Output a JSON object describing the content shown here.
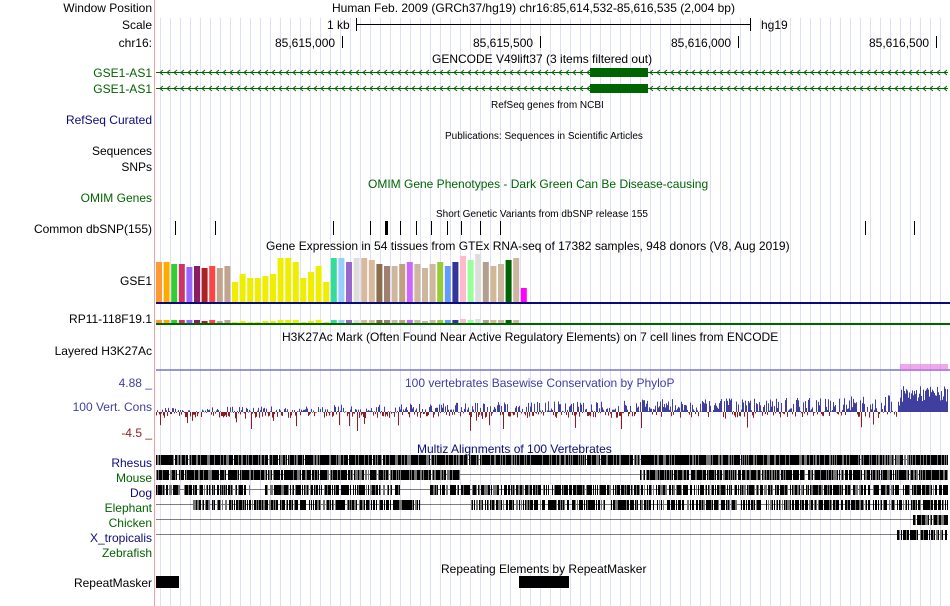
{
  "colors": {
    "gene_green": "#006400",
    "refseq_blue": "#0c0c78",
    "phylop_blue": "#3f3f9f",
    "phylop_red": "#8b1e1e",
    "grid_blue": "#dde0f8",
    "side_red": "#f0a0a0"
  },
  "header": {
    "window_position_label": "Window Position",
    "window_position_text": "Human Feb. 2009 (GRCh37/hg19)   chr16:85,614,532-85,616,535 (2,004 bp)",
    "scale_label": "Scale",
    "scale_text": "1 kb",
    "assembly": "hg19",
    "chrom_label": "chr16:",
    "ticks": [
      "85,615,000",
      "85,615,500",
      "85,616,000",
      "85,616,500"
    ]
  },
  "tracks": {
    "gencode_title": "GENCODE V49lift37 (3 items filtered out)",
    "gencode_items": [
      "GSE1-AS1",
      "GSE1-AS1"
    ],
    "refseq_title": "RefSeq genes from NCBI",
    "refseq_label": "RefSeq Curated",
    "publications_title": "Publications: Sequences in Scientific Articles",
    "sequences_label": "Sequences",
    "snps_label": "SNPs",
    "omim_title": "OMIM Gene Phenotypes - Dark Green Can Be Disease-causing",
    "omim_label": "OMIM Genes",
    "dbsnp_title": "Short Genetic Variants from dbSNP release 155",
    "dbsnp_label": "Common dbSNP(155)",
    "gtex_title": "Gene Expression in 54 tissues from GTEx RNA-seq of 17382 samples, 948 donors (V8, Aug 2019)",
    "gtex_gene1": "GSE1",
    "gtex_gene2": "RP11-118F19.1",
    "h3k27_title": "H3K27Ac Mark (Often Found Near Active Regulatory Elements) on 7 cell lines from ENCODE",
    "h3k27_label": "Layered H3K27Ac",
    "cons_title": "100 vertebrates Basewise Conservation by PhyloP",
    "cons_label": "100 Vert. Cons",
    "cons_max": "4.88 _",
    "cons_min": "-4.5 _",
    "multiz_title": "Multiz Alignments of 100 Vertebrates",
    "species": [
      "Rhesus",
      "Mouse",
      "Dog",
      "Elephant",
      "Chicken",
      "X_tropicalis",
      "Zebrafish"
    ],
    "repeat_title": "Repeating Elements by RepeatMasker",
    "repeat_label": "RepeatMasker"
  },
  "gtex_tissue_colors": [
    "#FF9933",
    "#FFAA00",
    "#33CC33",
    "#CC3366",
    "#9966FF",
    "#8B1C62",
    "#AA2222",
    "#FF4444",
    "#C1A48D",
    "#C1A48D",
    "#EEEE00",
    "#EEEE00",
    "#EEEE00",
    "#EEEE00",
    "#EEEE00",
    "#EEEE00",
    "#EEEE00",
    "#EEEE00",
    "#EEEE00",
    "#EEEE00",
    "#EEEE00",
    "#EEEE00",
    "#EEEE00",
    "#33DD99",
    "#99CCFF",
    "#9966CC",
    "#DDDDDD",
    "#D9B99B",
    "#D9B99B",
    "#8B6D4C",
    "#A08070",
    "#CDB79E",
    "#C0A080",
    "#CC66FF",
    "#CDB79E",
    "#CDB79E",
    "#CDB79E",
    "#99CC33",
    "#6699FF",
    "#333399",
    "#FFBBCC",
    "#99FF99",
    "#DDDDDD",
    "#B2A08C",
    "#D4B896",
    "#CDB79E",
    "#006400",
    "#CDB79E",
    "#FF00FF"
  ],
  "gtex_values": [
    40,
    40,
    38,
    38,
    35,
    36,
    34,
    36,
    34,
    36,
    20,
    28,
    24,
    24,
    26,
    28,
    44,
    44,
    40,
    24,
    30,
    36,
    20,
    44,
    44,
    40,
    44,
    44,
    42,
    38,
    36,
    36,
    38,
    40,
    38,
    34,
    38,
    40,
    36,
    40,
    46,
    42,
    48,
    40,
    36,
    38,
    42,
    44,
    14
  ]
}
